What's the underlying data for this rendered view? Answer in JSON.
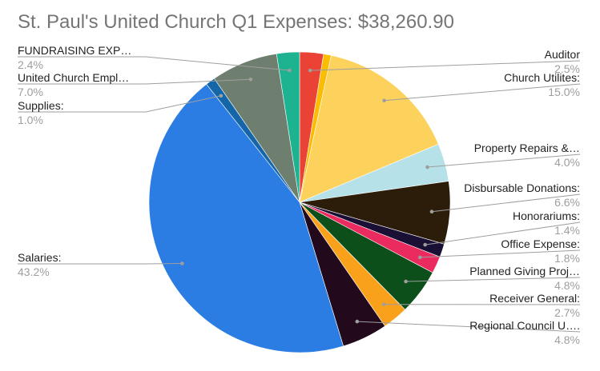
{
  "chart_data": {
    "type": "pie",
    "title": "St. Paul's United Church Q1 Expenses: $38,260.90",
    "start_angle_deg": 0,
    "direction": "clockwise",
    "slices": [
      {
        "label": "Auditor",
        "pct_label": "2.5%",
        "value": 2.5,
        "color": "#ea4335"
      },
      {
        "label": "",
        "pct_label": "",
        "value": 0.8,
        "color": "#fbbc04"
      },
      {
        "label": "Church Utilites:",
        "pct_label": "15.0%",
        "value": 15.0,
        "color": "#fcd25d"
      },
      {
        "label": "Property Repairs &…",
        "pct_label": "4.0%",
        "value": 4.0,
        "color": "#b6e1e8"
      },
      {
        "label": "Disbursable Donations:",
        "pct_label": "6.6%",
        "value": 6.6,
        "color": "#2b1d0a"
      },
      {
        "label": "Honorariums:",
        "pct_label": "1.4%",
        "value": 1.4,
        "color": "#1a1035"
      },
      {
        "label": "Office Expense:",
        "pct_label": "1.8%",
        "value": 1.8,
        "color": "#ea2b5f"
      },
      {
        "label": "Planned Giving Proj…",
        "pct_label": "4.8%",
        "value": 4.8,
        "color": "#0d4f1a"
      },
      {
        "label": "Receiver General:",
        "pct_label": "2.7%",
        "value": 2.7,
        "color": "#f9a11b"
      },
      {
        "label": "Regional Council U….",
        "pct_label": "4.8%",
        "value": 4.8,
        "color": "#220a1c"
      },
      {
        "label": "Salaries:",
        "pct_label": "43.2%",
        "value": 43.2,
        "color": "#2b7de3"
      },
      {
        "label": "Supplies:",
        "pct_label": "1.0%",
        "value": 1.0,
        "color": "#1566a8"
      },
      {
        "label": "United Church Empl…",
        "pct_label": "7.0%",
        "value": 7.0,
        "color": "#6f7f6f"
      },
      {
        "label": "FUNDRAISING EXP…",
        "pct_label": "2.4%",
        "value": 2.4,
        "color": "#1db391"
      }
    ]
  }
}
